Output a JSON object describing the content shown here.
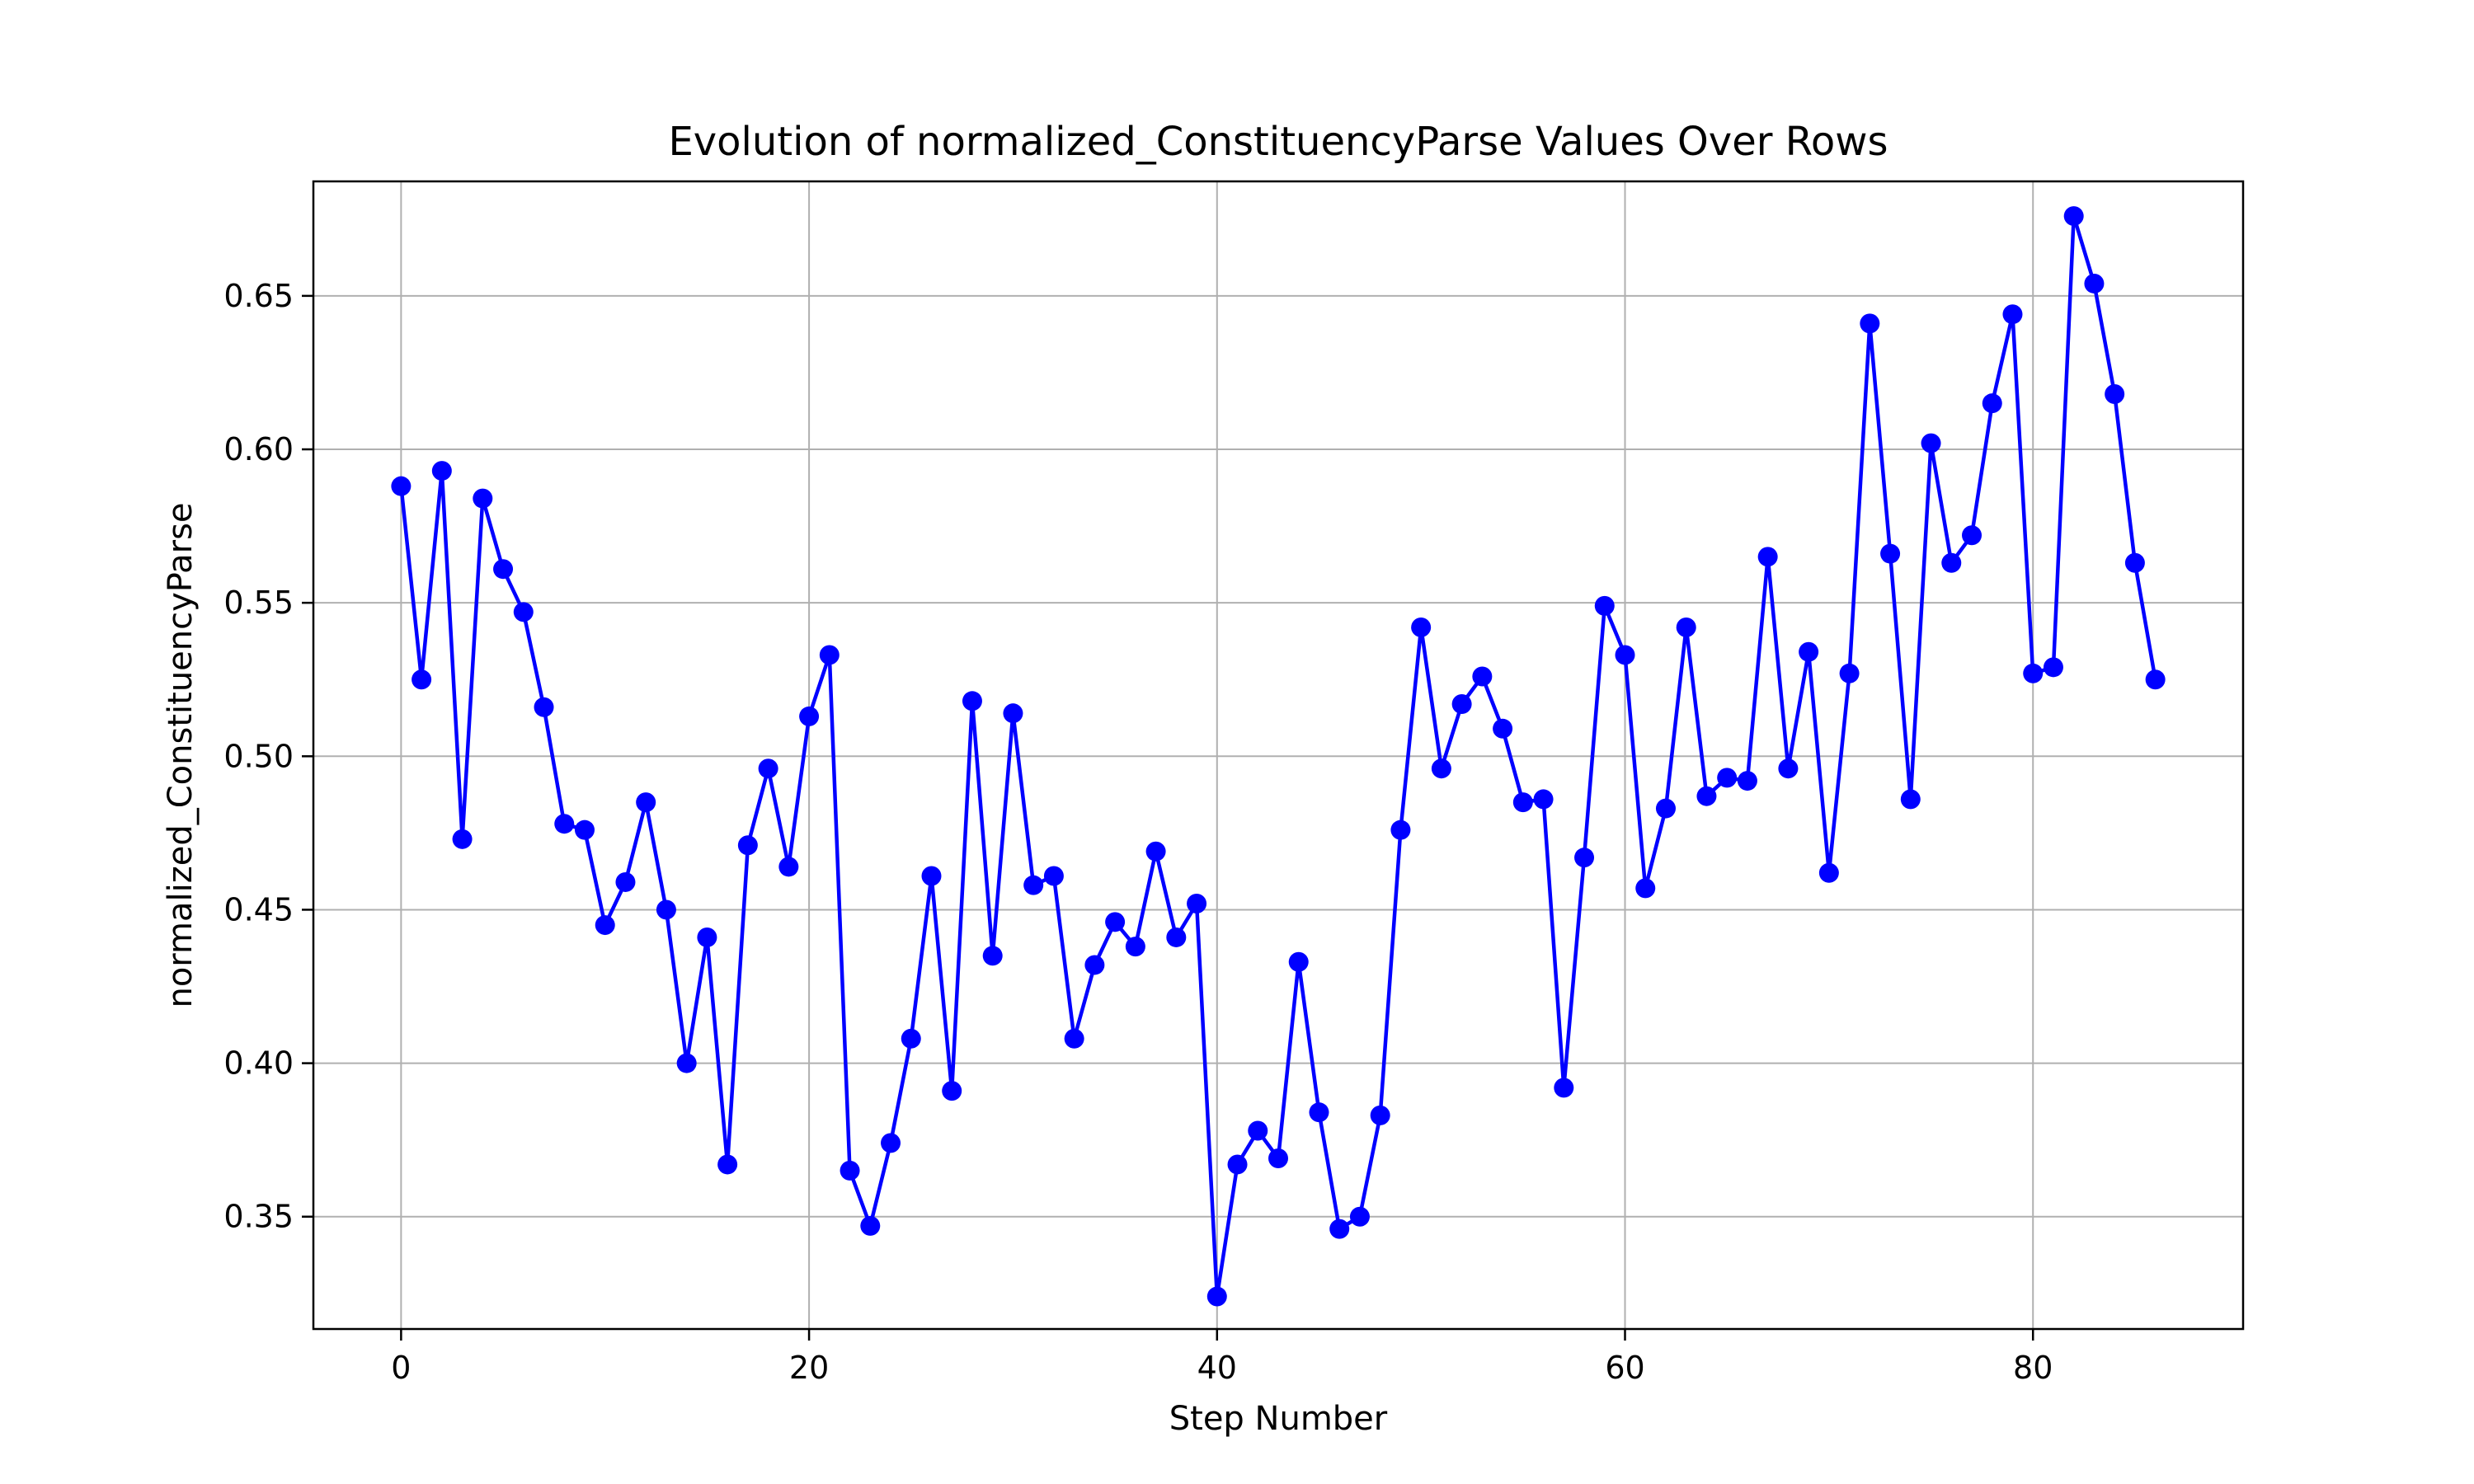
{
  "chart_data": {
    "type": "line",
    "title": "Evolution of normalized_ConstituencyParse Values Over Rows",
    "xlabel": "Step Number",
    "ylabel": "normalized_ConstituencyParse",
    "xlim": [
      -4.3,
      90.3
    ],
    "ylim": [
      0.3134,
      0.6873
    ],
    "xticks": [
      0,
      20,
      40,
      60,
      80
    ],
    "xtick_labels": [
      "0",
      "20",
      "40",
      "60",
      "80"
    ],
    "yticks": [
      0.35,
      0.4,
      0.45,
      0.5,
      0.55,
      0.6,
      0.65
    ],
    "ytick_labels": [
      "0.35",
      "0.40",
      "0.45",
      "0.50",
      "0.55",
      "0.60",
      "0.65"
    ],
    "grid": true,
    "legend": false,
    "colors": {
      "series": "#0000ff",
      "grid": "#b0b0b0",
      "axes": "#000000"
    },
    "series": [
      {
        "marker": "circle",
        "x": [
          0,
          1,
          2,
          3,
          4,
          5,
          6,
          7,
          8,
          9,
          10,
          11,
          12,
          13,
          14,
          15,
          16,
          17,
          18,
          19,
          20,
          21,
          22,
          23,
          24,
          25,
          26,
          27,
          28,
          29,
          30,
          31,
          32,
          33,
          34,
          35,
          36,
          37,
          38,
          39,
          40,
          41,
          42,
          43,
          44,
          45,
          46,
          47,
          48,
          49,
          50,
          51,
          52,
          53,
          54,
          55,
          56,
          57,
          58,
          59,
          60,
          61,
          62,
          63,
          64,
          65,
          66,
          67,
          68,
          69,
          70,
          71,
          72,
          73,
          74,
          75,
          76,
          77,
          78,
          79,
          80,
          81,
          82,
          83,
          84,
          85,
          86
        ],
        "values": [
          0.588,
          0.525,
          0.593,
          0.473,
          0.584,
          0.561,
          0.547,
          0.516,
          0.478,
          0.476,
          0.445,
          0.459,
          0.485,
          0.45,
          0.4,
          0.441,
          0.367,
          0.471,
          0.496,
          0.464,
          0.513,
          0.533,
          0.365,
          0.347,
          0.374,
          0.408,
          0.461,
          0.391,
          0.518,
          0.435,
          0.514,
          0.458,
          0.461,
          0.408,
          0.432,
          0.446,
          0.438,
          0.469,
          0.441,
          0.452,
          0.324,
          0.367,
          0.378,
          0.369,
          0.433,
          0.384,
          0.346,
          0.35,
          0.383,
          0.476,
          0.542,
          0.496,
          0.517,
          0.526,
          0.509,
          0.485,
          0.486,
          0.392,
          0.467,
          0.549,
          0.533,
          0.457,
          0.483,
          0.542,
          0.487,
          0.493,
          0.492,
          0.565,
          0.496,
          0.534,
          0.462,
          0.527,
          0.641,
          0.566,
          0.486,
          0.602,
          0.563,
          0.572,
          0.615,
          0.644,
          0.527,
          0.529,
          0.676,
          0.654,
          0.618,
          0.563,
          0.525
        ]
      }
    ]
  }
}
